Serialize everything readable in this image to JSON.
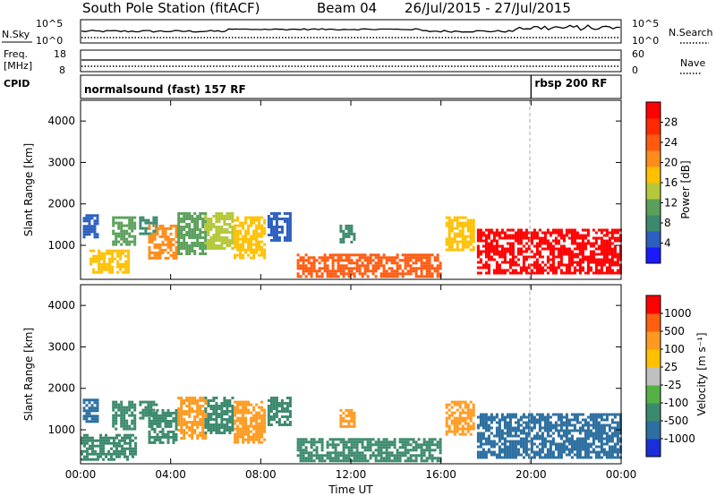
{
  "header": {
    "station": "South Pole Station (fitACF)",
    "beam": "Beam 04",
    "date_range": "26/Jul/2015 - 27/Jul/2015"
  },
  "summary_panels": {
    "nsky_label": "N.Sky",
    "nsky_ticks": [
      "10^5",
      "10^0"
    ],
    "nsearch_label": "N.Search",
    "nsearch_ticks": [
      "10^5",
      "10^0"
    ],
    "freq_label_1": "Freq.",
    "freq_label_2": "[MHz]",
    "freq_ticks": [
      "18",
      "8"
    ],
    "nave_label": "Nave",
    "nave_ticks": [
      "60",
      "0"
    ],
    "cpid_label": "CPID",
    "cpid_segments": [
      {
        "label": "normalsound (fast) 157 RF",
        "start_hour": 0
      },
      {
        "label": "rbsp 200 RF",
        "start_hour": 20
      }
    ]
  },
  "chart_data": [
    {
      "type": "heatmap",
      "name": "power",
      "ylabel": "Slant Range [km]",
      "xlabel": "",
      "x_range_hours": [
        0,
        24
      ],
      "ylim": [
        180,
        4500
      ],
      "y_ticks": [
        "1000",
        "2000",
        "3000",
        "4000"
      ],
      "colorbar": {
        "title": "Power [dB]",
        "labels": [
          "4",
          "8",
          "12",
          "16",
          "20",
          "24",
          "28"
        ],
        "colors": [
          "#1a1aff",
          "#2c5fc0",
          "#3c8a6e",
          "#5aa05a",
          "#b5c83a",
          "#ffc000",
          "#ff8c1a",
          "#ff5a10",
          "#ff2a00",
          "#ff0000"
        ]
      },
      "blobs": [
        {
          "t0": 0.4,
          "t1": 2.1,
          "r0": 350,
          "r1": 900,
          "c": "#ffc000"
        },
        {
          "t0": 0.1,
          "t1": 0.7,
          "r0": 1200,
          "r1": 1750,
          "c": "#2c5fc0"
        },
        {
          "t0": 1.4,
          "t1": 2.4,
          "r0": 1000,
          "r1": 1700,
          "c": "#5aa05a"
        },
        {
          "t0": 2.6,
          "t1": 3.4,
          "r0": 1300,
          "r1": 1700,
          "c": "#3c8a6e"
        },
        {
          "t0": 3.0,
          "t1": 4.2,
          "r0": 700,
          "r1": 1500,
          "c": "#ff8c1a"
        },
        {
          "t0": 4.3,
          "t1": 5.5,
          "r0": 800,
          "r1": 1800,
          "c": "#5aa05a"
        },
        {
          "t0": 5.5,
          "t1": 6.8,
          "r0": 900,
          "r1": 1800,
          "c": "#b5c83a"
        },
        {
          "t0": 6.8,
          "t1": 8.2,
          "r0": 700,
          "r1": 1700,
          "c": "#ffc000"
        },
        {
          "t0": 8.3,
          "t1": 9.3,
          "r0": 1100,
          "r1": 1800,
          "c": "#2c5fc0"
        },
        {
          "t0": 9.6,
          "t1": 16.0,
          "r0": 250,
          "r1": 800,
          "c": "#ff5a10"
        },
        {
          "t0": 11.5,
          "t1": 12.2,
          "r0": 1100,
          "r1": 1500,
          "c": "#3c8a6e"
        },
        {
          "t0": 16.2,
          "t1": 17.4,
          "r0": 900,
          "r1": 1700,
          "c": "#ffc000"
        },
        {
          "t0": 17.6,
          "t1": 24.0,
          "r0": 350,
          "r1": 1400,
          "c": "#ff0000"
        }
      ]
    },
    {
      "type": "heatmap",
      "name": "velocity",
      "ylabel": "Slant Range [km]",
      "xlabel": "Time UT",
      "x_range_hours": [
        0,
        24
      ],
      "x_ticks": [
        "00:00",
        "04:00",
        "08:00",
        "12:00",
        "16:00",
        "20:00",
        "00:00"
      ],
      "ylim": [
        180,
        4500
      ],
      "y_ticks": [
        "1000",
        "2000",
        "3000",
        "4000"
      ],
      "colorbar": {
        "title": "Velocity [m s⁻¹]",
        "labels": [
          "1000",
          "500",
          "100",
          "25",
          "-25",
          "-100",
          "-500",
          "-1000"
        ],
        "colors": [
          "#1a2fd8",
          "#2c6fa0",
          "#3c8a6e",
          "#55b045",
          "#c0c0c0",
          "#ffc000",
          "#ff9a20",
          "#ff6010",
          "#ff0000"
        ]
      },
      "blobs": [
        {
          "t0": 0.0,
          "t1": 2.4,
          "r0": 300,
          "r1": 900,
          "c": "#3c8a6e"
        },
        {
          "t0": 0.1,
          "t1": 0.7,
          "r0": 1200,
          "r1": 1750,
          "c": "#2c6fa0"
        },
        {
          "t0": 1.4,
          "t1": 2.4,
          "r0": 1000,
          "r1": 1700,
          "c": "#3c8a6e"
        },
        {
          "t0": 2.6,
          "t1": 3.4,
          "r0": 1300,
          "r1": 1700,
          "c": "#3c8a6e"
        },
        {
          "t0": 3.0,
          "t1": 4.2,
          "r0": 700,
          "r1": 1500,
          "c": "#3c8a6e"
        },
        {
          "t0": 4.3,
          "t1": 5.5,
          "r0": 800,
          "r1": 1800,
          "c": "#ff9a20"
        },
        {
          "t0": 5.5,
          "t1": 6.8,
          "r0": 900,
          "r1": 1800,
          "c": "#3c8a6e"
        },
        {
          "t0": 6.8,
          "t1": 8.2,
          "r0": 700,
          "r1": 1700,
          "c": "#ff9a20"
        },
        {
          "t0": 8.3,
          "t1": 9.3,
          "r0": 1100,
          "r1": 1800,
          "c": "#3c8a6e"
        },
        {
          "t0": 9.6,
          "t1": 16.0,
          "r0": 250,
          "r1": 800,
          "c": "#3c8a6e"
        },
        {
          "t0": 11.5,
          "t1": 12.2,
          "r0": 1100,
          "r1": 1500,
          "c": "#ff9a20"
        },
        {
          "t0": 16.2,
          "t1": 17.4,
          "r0": 900,
          "r1": 1700,
          "c": "#ff9a20"
        },
        {
          "t0": 17.6,
          "t1": 24.0,
          "r0": 350,
          "r1": 1400,
          "c": "#2c6fa0"
        }
      ]
    }
  ],
  "layout_notes": {
    "grid": false,
    "dashed_vline_hour": 20
  }
}
